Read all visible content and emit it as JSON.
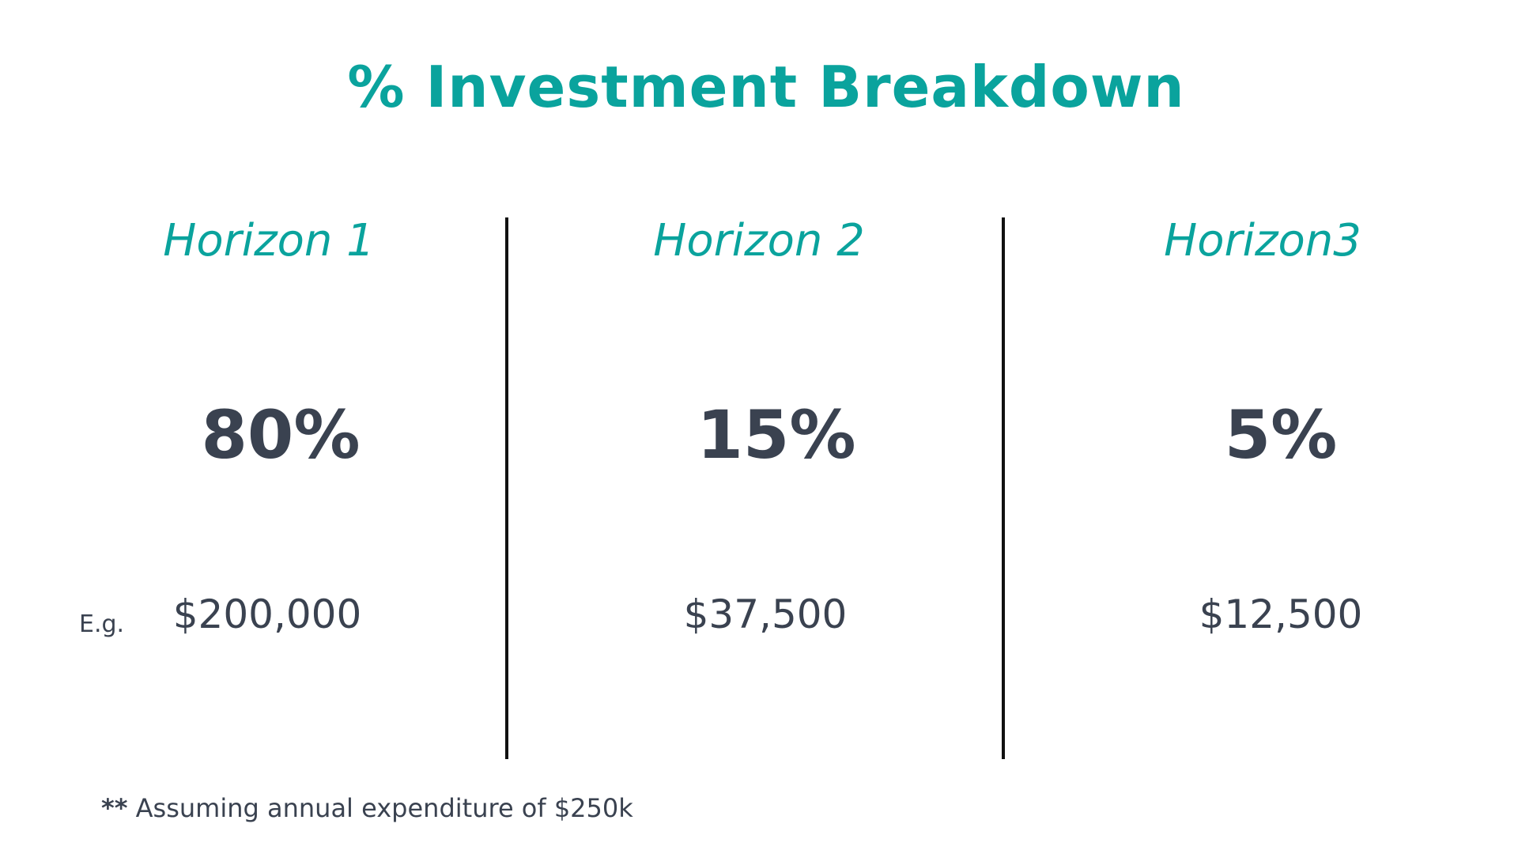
{
  "title": "% Investment Breakdown",
  "columns": [
    {
      "heading": "Horizon 1",
      "percent": "80%",
      "amount": "$200,000"
    },
    {
      "heading": "Horizon 2",
      "percent": "15%",
      "amount": "$37,500"
    },
    {
      "heading": "Horizon3",
      "percent": "5%",
      "amount": "$12,500"
    }
  ],
  "example_label": "E.g.",
  "footnote": {
    "marker": "**",
    "text": " Assuming annual expenditure of $250k"
  },
  "colors": {
    "accent": "#0aa39d",
    "text": "#3a4250",
    "divider": "#111111",
    "background": "#ffffff"
  }
}
